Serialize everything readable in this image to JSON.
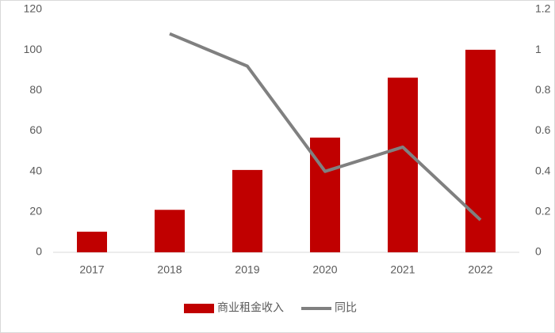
{
  "chart_data": {
    "type": "bar",
    "categories": [
      "2017",
      "2018",
      "2019",
      "2020",
      "2021",
      "2022"
    ],
    "series": [
      {
        "name": "商业租金收入",
        "color": "#c00000",
        "type": "bar",
        "values": [
          10.2,
          21,
          40.7,
          56.7,
          86.3,
          100.1
        ]
      },
      {
        "name": "同比",
        "color": "#808080",
        "type": "line",
        "axis": "y2",
        "values": [
          null,
          1.08,
          0.92,
          0.4,
          0.52,
          0.16
        ]
      }
    ],
    "ylim": [
      0,
      120
    ],
    "yticks": [
      0,
      20,
      40,
      60,
      80,
      100,
      120
    ],
    "y2lim": [
      0,
      1.2
    ],
    "y2ticks": [
      0,
      0.2,
      0.4,
      0.6,
      0.8,
      1,
      1.2
    ],
    "grid": false,
    "legend": "bottom"
  }
}
